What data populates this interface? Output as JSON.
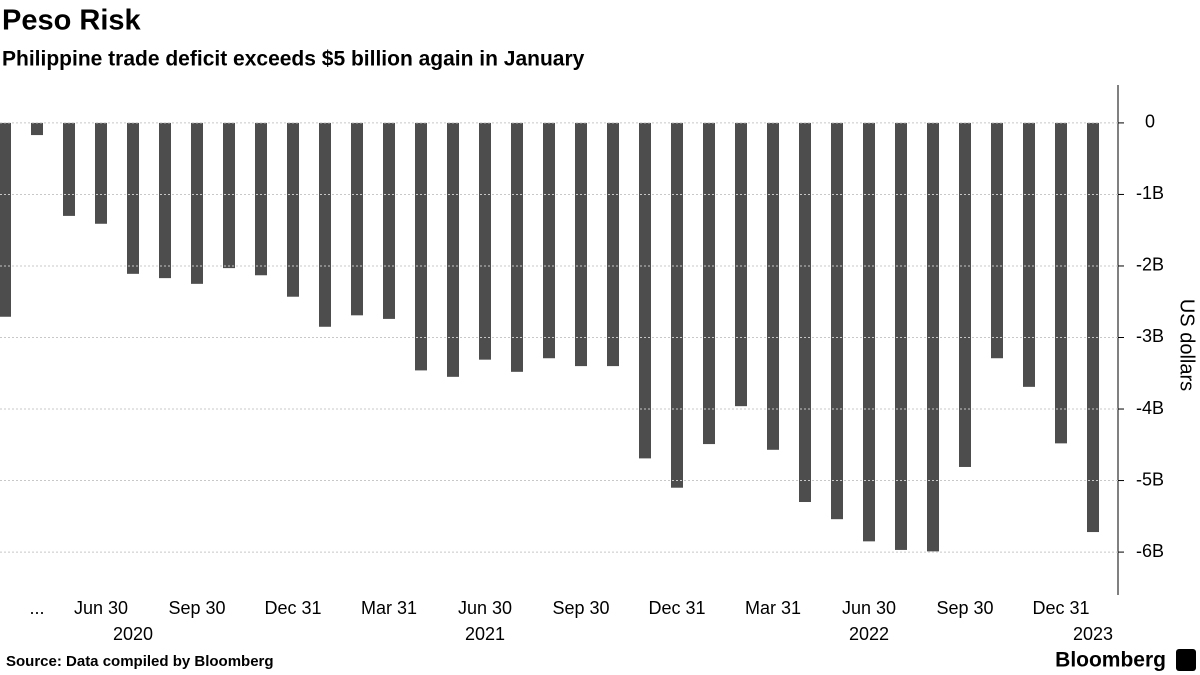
{
  "chart_data": {
    "type": "bar",
    "title": "Peso Risk",
    "subtitle": "Philippine trade deficit exceeds $5 billion again in January",
    "source": "Source: Data compiled by Bloomberg",
    "brand": "Bloomberg",
    "y_label": "US dollars",
    "categories": [
      null,
      "...",
      null,
      "Jun 30",
      null,
      null,
      "Sep 30",
      null,
      null,
      "Dec 31",
      null,
      null,
      "Mar 31",
      null,
      null,
      "Jun 30",
      null,
      null,
      "Sep 30",
      null,
      null,
      "Dec 31",
      null,
      null,
      "Mar 31",
      null,
      null,
      "Jun 30",
      null,
      null,
      "Sep 30",
      null,
      null,
      "Dec 31",
      null
    ],
    "year_categories": [
      null,
      null,
      null,
      null,
      "2020",
      null,
      null,
      null,
      null,
      null,
      null,
      null,
      null,
      null,
      null,
      "2021",
      null,
      null,
      null,
      null,
      null,
      null,
      null,
      null,
      null,
      null,
      null,
      "2022",
      null,
      null,
      null,
      null,
      null,
      null,
      "2023"
    ],
    "values": [
      -2.71,
      -0.17,
      -1.3,
      -1.41,
      -2.11,
      -2.17,
      -2.25,
      -2.03,
      -2.13,
      -2.43,
      -2.85,
      -2.69,
      -2.74,
      -3.46,
      -3.55,
      -3.31,
      -3.48,
      -3.29,
      -3.4,
      -3.4,
      -4.69,
      -5.1,
      -4.49,
      -3.96,
      -4.57,
      -5.3,
      -5.54,
      -5.85,
      -5.97,
      -5.99,
      -4.81,
      -3.29,
      -3.69,
      -4.48,
      -5.72
    ],
    "color": "#4d4d4d",
    "ylim": [
      -6.6,
      0.53
    ],
    "yticks": [
      0,
      {
        "value": -1,
        "label": "-1B"
      },
      {
        "value": -2,
        "label": "-2B"
      },
      {
        "value": -3,
        "label": "-3B"
      },
      {
        "value": -4,
        "label": "-4B"
      },
      {
        "value": -5,
        "label": "-5B"
      },
      {
        "value": -6,
        "label": "-6B"
      }
    ],
    "grid": true
  }
}
